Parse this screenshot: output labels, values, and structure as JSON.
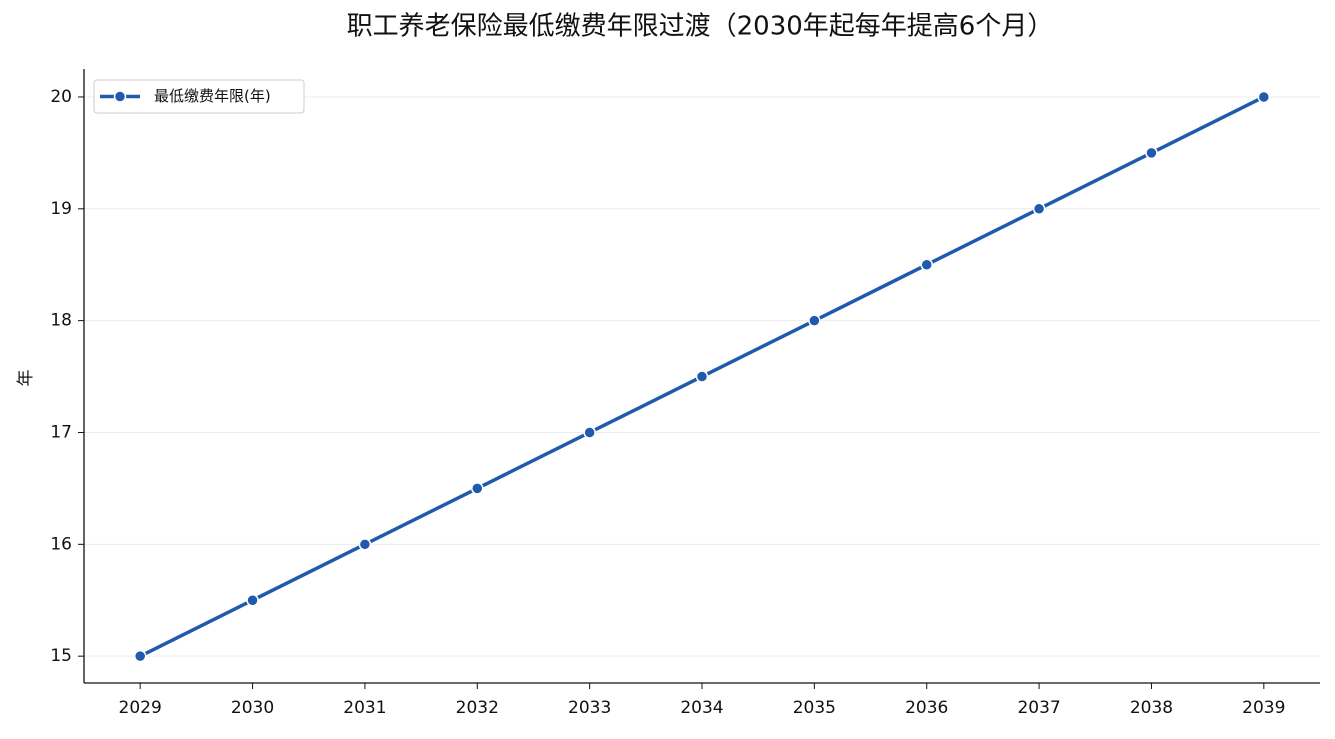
{
  "chart_data": {
    "type": "line",
    "title": "职工养老保险最低缴费年限过渡（2030年起每年提高6个月）",
    "ylabel": "年",
    "x": [
      2029,
      2030,
      2031,
      2032,
      2033,
      2034,
      2035,
      2036,
      2037,
      2038,
      2039
    ],
    "series": [
      {
        "name": "最低缴费年限(年)",
        "color": "#1f5aad",
        "values": [
          15,
          15.5,
          16,
          16.5,
          17,
          17.5,
          18,
          18.5,
          19,
          19.5,
          20
        ]
      }
    ],
    "xlim": [
      2028.5,
      2039.5
    ],
    "xticks": [
      2029,
      2030,
      2031,
      2032,
      2033,
      2034,
      2035,
      2036,
      2037,
      2038,
      2039
    ],
    "ylim": [
      14.76,
      20.25
    ],
    "yticks": [
      15,
      16,
      17,
      18,
      19,
      20
    ],
    "grid": true,
    "legend": "upper-left"
  }
}
